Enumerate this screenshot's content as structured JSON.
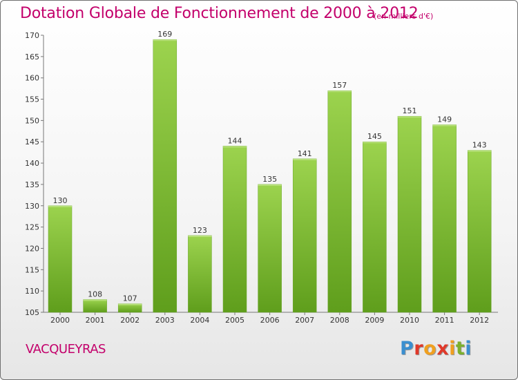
{
  "header": {
    "title": "Dotation Globale de Fonctionnement de 2000 à 2012",
    "unit": "(en milliers d'€)"
  },
  "footer": {
    "commune": "VACQUEYRAS",
    "logo_text": "Proxiti",
    "logo_colors": [
      "#3a8fd0",
      "#e0392a",
      "#f0a020",
      "#e0392a",
      "#f0a020",
      "#7bb02d",
      "#3a8fd0"
    ]
  },
  "chart_data": {
    "type": "bar",
    "title": "Dotation Globale de Fonctionnement de 2000 à 2012",
    "subtitle": "(en milliers d'€)",
    "categories": [
      "2000",
      "2001",
      "2002",
      "2003",
      "2004",
      "2005",
      "2006",
      "2007",
      "2008",
      "2009",
      "2010",
      "2011",
      "2012"
    ],
    "values": [
      130,
      108,
      107,
      169,
      123,
      144,
      135,
      141,
      157,
      145,
      151,
      149,
      143
    ],
    "ylim": [
      105,
      170
    ],
    "yticks": [
      105,
      110,
      115,
      120,
      125,
      130,
      135,
      140,
      145,
      150,
      155,
      160,
      165,
      170
    ],
    "grid": false,
    "bar_color": "#8cc63e",
    "bar_color_dark": "#5c9a1a"
  }
}
